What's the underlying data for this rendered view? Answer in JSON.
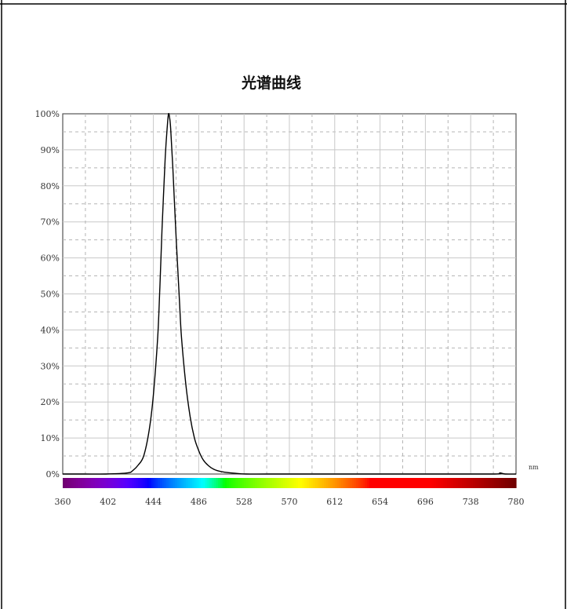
{
  "chart_data": {
    "type": "line",
    "title": "光谱曲线",
    "xlabel": "",
    "ylabel": "",
    "x_unit": "nm",
    "xlim": [
      360,
      780
    ],
    "ylim": [
      0,
      100
    ],
    "x_ticks": [
      "360",
      "402",
      "444",
      "486",
      "528",
      "570",
      "612",
      "654",
      "696",
      "738",
      "780"
    ],
    "y_ticks": [
      "0%",
      "10%",
      "20%",
      "30%",
      "40%",
      "50%",
      "60%",
      "70%",
      "80%",
      "90%",
      "100%"
    ],
    "grid": true,
    "legend": "none",
    "spectrum_bar": true,
    "series": [
      {
        "color": "#000000",
        "x": [
          360,
          380,
          400,
          420,
          425,
          430,
          435,
          440,
          444,
          448,
          450,
          452,
          455,
          457,
          458,
          459,
          460,
          462,
          465,
          468,
          470,
          474,
          478,
          482,
          486,
          490,
          495,
          500,
          505,
          510,
          520,
          530,
          550,
          600,
          700,
          760,
          765,
          770,
          780
        ],
        "y": [
          0,
          0,
          0,
          0.3,
          1,
          2.5,
          5,
          12,
          22,
          38,
          52,
          68,
          88,
          97,
          100,
          99,
          96,
          85,
          66,
          49,
          38,
          25,
          16,
          10,
          6.5,
          4,
          2.3,
          1.3,
          0.8,
          0.5,
          0.2,
          0,
          0,
          0,
          0,
          0,
          0.3,
          0,
          0
        ]
      }
    ]
  }
}
